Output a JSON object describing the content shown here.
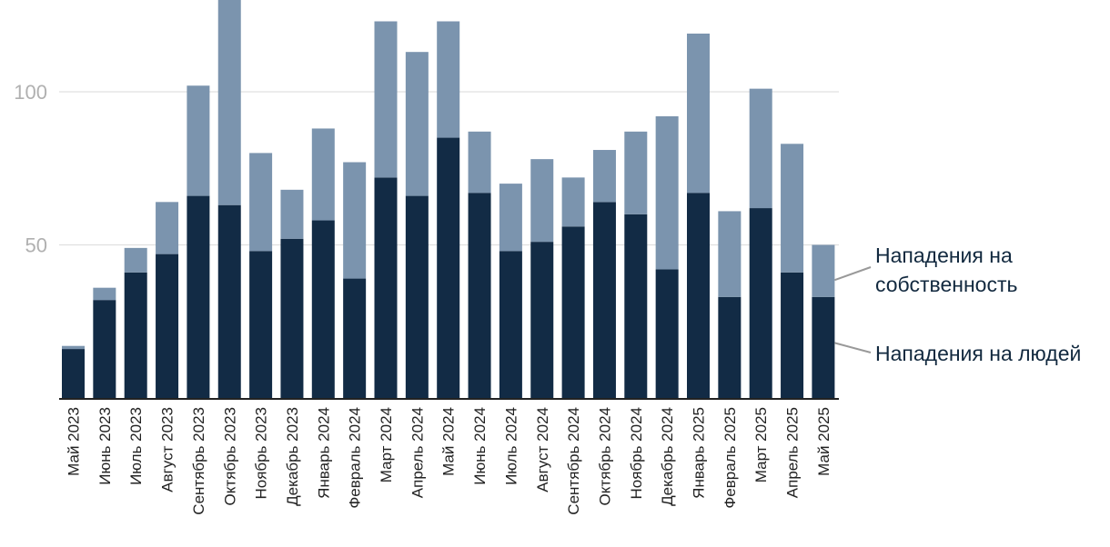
{
  "chart_data": {
    "type": "bar",
    "stacked": true,
    "categories": [
      "Май 2023",
      "Июнь 2023",
      "Июль 2023",
      "Август 2023",
      "Сентябрь 2023",
      "Октябрь 2023",
      "Ноябрь 2023",
      "Декабрь 2023",
      "Январь 2024",
      "Февраль 2024",
      "Март 2024",
      "Апрель 2024",
      "Май 2024",
      "Июнь 2024",
      "Июль 2024",
      "Август 2024",
      "Сентябрь 2024",
      "Октябрь 2024",
      "Ноябрь 2024",
      "Декабрь 2024",
      "Январь 2025",
      "Февраль 2025",
      "Март 2025",
      "Апрель 2025",
      "Май 2025"
    ],
    "series": [
      {
        "name": "Нападения на людей",
        "color": "#122b45",
        "values": [
          16,
          32,
          41,
          47,
          66,
          63,
          48,
          52,
          58,
          39,
          72,
          66,
          85,
          67,
          48,
          51,
          56,
          64,
          60,
          42,
          67,
          33,
          62,
          41,
          33
        ]
      },
      {
        "name": "Нападения на собственность",
        "color": "#7b94ae",
        "values": [
          1,
          4,
          8,
          17,
          36,
          67,
          32,
          16,
          30,
          38,
          51,
          47,
          38,
          20,
          22,
          27,
          16,
          17,
          27,
          50,
          52,
          28,
          39,
          42,
          17
        ]
      }
    ],
    "legend": {
      "placement": "right",
      "entries": [
        {
          "lines": [
            "Нападения на",
            "собственность"
          ],
          "series": 1
        },
        {
          "lines": [
            "Нападения на людей"
          ],
          "series": 0
        }
      ]
    },
    "yticks": [
      "50",
      "100"
    ],
    "ytick_values": [
      50,
      100
    ],
    "ylim": [
      0,
      128
    ],
    "grid": true,
    "title": "",
    "xlabel": "",
    "ylabel": ""
  }
}
